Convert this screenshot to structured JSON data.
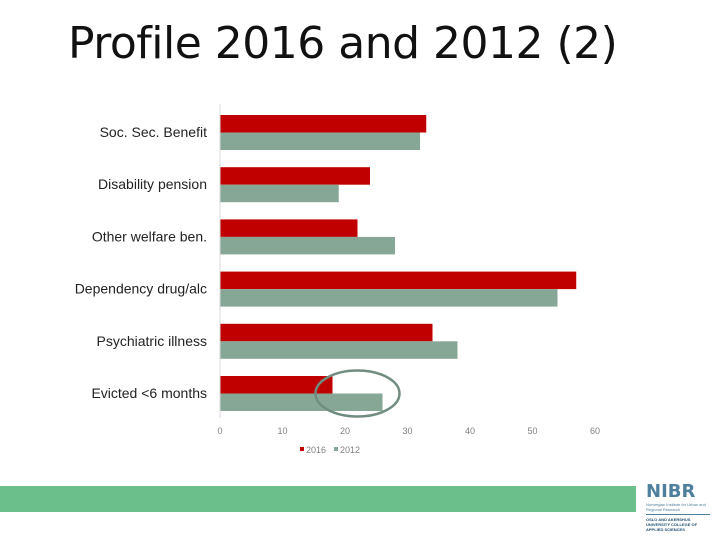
{
  "title": "Profile 2016 and 2012 (2)",
  "chart_data": {
    "type": "bar",
    "orientation": "horizontal",
    "categories": [
      "Soc. Sec. Benefit",
      "Disability pension",
      "Other welfare ben.",
      "Dependency drug/alc",
      "Psychiatric illness",
      "Evicted <6 months"
    ],
    "series": [
      {
        "name": "2016",
        "color": "#c00000",
        "values": [
          33,
          24,
          22,
          57,
          34,
          18
        ]
      },
      {
        "name": "2012",
        "color": "#87a796",
        "values": [
          32,
          19,
          28,
          54,
          38,
          26
        ]
      }
    ],
    "xlim": [
      0,
      60
    ],
    "xticks": [
      "0",
      "10",
      "20",
      "30",
      "40",
      "50",
      "60"
    ],
    "legend_position": "bottom",
    "grid": false,
    "annotation": {
      "type": "ellipse",
      "target_category": "Evicted <6 months",
      "color": "#708d80"
    }
  },
  "logo": {
    "name": "NIBR",
    "subtitle": "Norwegian Institute for Urban and Regional Research",
    "university": "OSLO AND AKERSHUS UNIVERSITY COLLEGE OF APPLIED SCIENCES",
    "color": "#4e7f9c"
  },
  "footer": {
    "bar_color": "#6abf8a"
  }
}
